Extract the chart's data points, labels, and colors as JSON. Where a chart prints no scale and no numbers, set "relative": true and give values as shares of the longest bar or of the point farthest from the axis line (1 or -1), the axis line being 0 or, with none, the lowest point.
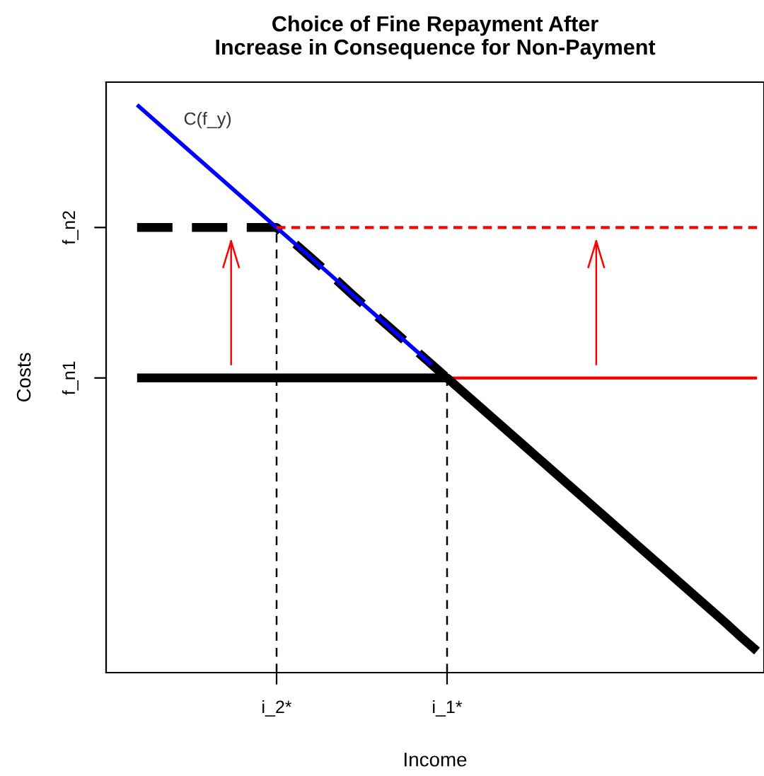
{
  "chart_data": {
    "type": "line",
    "title": "Choice of Fine Repayment After\nIncrease in Consequence for Non-Payment",
    "xlabel": "Income",
    "ylabel": "Costs",
    "relative": true,
    "categories": [
      null,
      null,
      null,
      null,
      null,
      null,
      null,
      null,
      null,
      "i_2*",
      null,
      null,
      null,
      null,
      null,
      null,
      null,
      null,
      null,
      null,
      "i_1*",
      null,
      null,
      null,
      null,
      null,
      null,
      null,
      null,
      null,
      null,
      null,
      null,
      null,
      null,
      null,
      null,
      null,
      null,
      null,
      null
    ],
    "annotations": [
      "f_n1",
      "f_n2"
    ],
    "grid": false,
    "legend": false,
    "marker": "none",
    "ref_lines": [
      {
        "axis": "x",
        "value": "i_2*",
        "color": "#000000",
        "line_style": "dashed"
      },
      {
        "axis": "x",
        "value": "i_1*",
        "color": "#000000",
        "line_style": "dashed"
      }
    ],
    "series": [
      {
        "name": "C(f_y)",
        "color": "#0000ff",
        "line_style": "solid",
        "values": [
          1.0,
          0.976,
          0.952,
          0.928,
          0.904,
          0.88,
          0.856,
          0.832,
          0.808,
          0.784,
          0.76,
          0.736,
          0.712,
          0.688,
          0.663,
          0.639,
          0.615,
          0.591,
          0.567,
          0.543,
          null,
          null,
          null,
          null,
          null,
          null,
          null,
          null,
          null,
          null,
          null,
          null,
          null,
          null,
          null,
          null,
          null,
          null,
          null,
          null,
          null
        ]
      },
      {
        "color": "#ff0000",
        "line_style": "solid",
        "values": [
          null,
          null,
          null,
          null,
          null,
          null,
          null,
          null,
          null,
          null,
          null,
          null,
          null,
          null,
          null,
          null,
          null,
          null,
          null,
          null,
          0.519,
          0.519,
          0.519,
          0.519,
          0.519,
          0.519,
          0.519,
          0.519,
          0.519,
          0.519,
          0.519,
          0.519,
          0.519,
          0.519,
          0.519,
          0.519,
          0.519,
          0.519,
          0.519,
          0.519,
          0.519
        ]
      },
      {
        "color": "#ff0000",
        "line_style": "dashed",
        "values": [
          null,
          null,
          null,
          null,
          null,
          null,
          null,
          null,
          null,
          0.784,
          0.784,
          0.784,
          0.784,
          0.784,
          0.784,
          0.784,
          0.784,
          0.784,
          0.784,
          0.784,
          0.784,
          0.784,
          0.784,
          0.784,
          0.784,
          0.784,
          0.784,
          0.784,
          0.784,
          0.784,
          0.784,
          0.784,
          0.784,
          0.784,
          0.784,
          0.784,
          0.784,
          0.784,
          0.784,
          0.784,
          0.784
        ]
      },
      {
        "color": "#000000",
        "line_style": "solid",
        "values": [
          0.519,
          0.519,
          0.519,
          0.519,
          0.519,
          0.519,
          0.519,
          0.519,
          0.519,
          0.519,
          0.519,
          0.519,
          0.519,
          0.519,
          0.519,
          0.519,
          0.519,
          0.519,
          0.519,
          0.519,
          0.519,
          0.495,
          0.471,
          0.447,
          0.423,
          0.399,
          0.375,
          0.351,
          0.327,
          0.303,
          0.279,
          0.255,
          0.231,
          0.207,
          0.183,
          0.159,
          0.135,
          0.111,
          0.087,
          0.062,
          0.038
        ]
      },
      {
        "color": "#000000",
        "line_style": "dashed",
        "values": [
          0.784,
          0.784,
          0.784,
          0.784,
          0.784,
          0.784,
          0.784,
          0.784,
          0.784,
          0.784,
          0.76,
          0.736,
          0.712,
          0.688,
          0.663,
          0.639,
          0.615,
          0.591,
          0.567,
          0.543,
          0.519,
          null,
          null,
          null,
          null,
          null,
          null,
          null,
          null,
          null,
          null,
          null,
          null,
          null,
          null,
          null,
          null,
          null,
          null,
          null,
          null
        ]
      }
    ]
  }
}
